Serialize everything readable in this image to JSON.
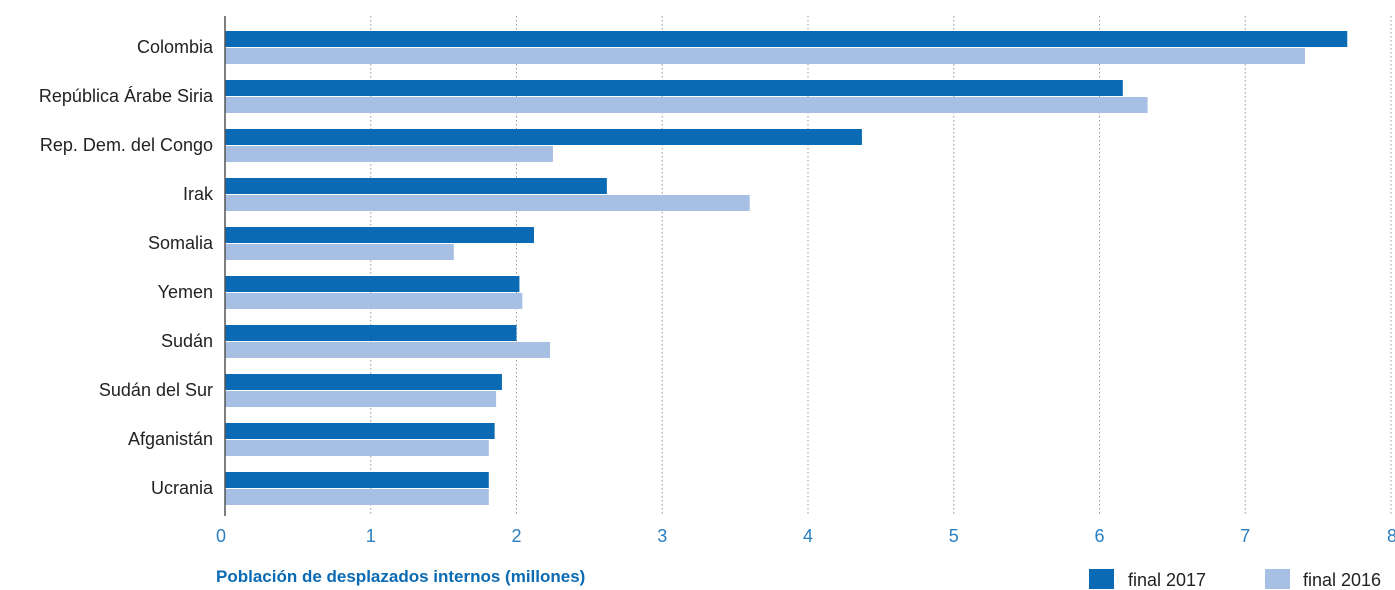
{
  "chart_data": {
    "type": "bar",
    "orientation": "horizontal",
    "categories": [
      "Colombia",
      "República Árabe Siria",
      "Rep. Dem. del Congo",
      "Irak",
      "Somalia",
      "Yemen",
      "Sudán",
      "Sudán del Sur",
      "Afganistán",
      "Ucrania"
    ],
    "series": [
      {
        "name": "final 2017",
        "color": "#0a6ab3",
        "values": [
          7.7,
          6.16,
          4.37,
          2.62,
          2.12,
          2.02,
          2.0,
          1.9,
          1.85,
          1.81
        ]
      },
      {
        "name": "final 2016",
        "color": "#a6bfe3",
        "values": [
          7.41,
          6.33,
          2.25,
          3.6,
          1.57,
          2.04,
          2.23,
          1.86,
          1.81,
          1.81
        ]
      }
    ],
    "xlabel": "Población de desplazados internos (millones)",
    "xlim": [
      0,
      8
    ],
    "xticks": [
      "0",
      "1",
      "2",
      "3",
      "4",
      "5",
      "6",
      "7",
      "8"
    ],
    "grid": "vertical-dotted",
    "legend_position": "bottom-right"
  }
}
